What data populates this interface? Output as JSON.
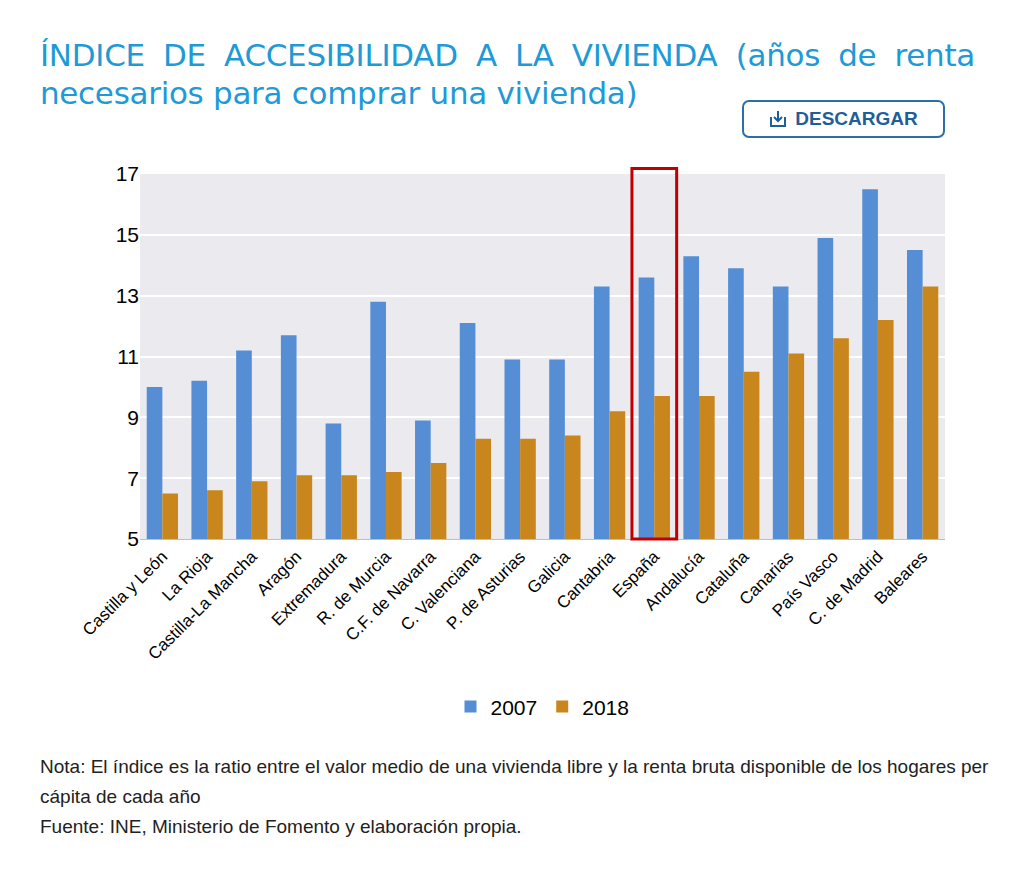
{
  "chart_data": {
    "type": "bar",
    "title": "ÍNDICE DE ACCESIBILIDAD A LA VIVIENDA (años de renta necesarios para comprar una vivienda)",
    "button": "DESCARGAR",
    "categories": [
      "Castilla y León",
      "La Rioja",
      "Castilla-La Mancha",
      "Aragón",
      "Extremadura",
      "R. de Murcia",
      "C.F. de Navarra",
      "C. Valenciana",
      "P. de Asturias",
      "Galicia",
      "Cantabria",
      "España",
      "Andalucía",
      "Cataluña",
      "Canarias",
      "País Vasco",
      "C. de Madrid",
      "Baleares"
    ],
    "series": [
      {
        "name": "2007",
        "color": "#558ED5",
        "values": [
          10.0,
          10.2,
          11.2,
          11.7,
          8.8,
          12.8,
          8.9,
          12.1,
          10.9,
          10.9,
          13.3,
          13.6,
          14.3,
          13.9,
          13.3,
          14.9,
          16.5,
          14.5
        ]
      },
      {
        "name": "2018",
        "color": "#C8861C",
        "values": [
          6.5,
          6.6,
          6.9,
          7.1,
          7.1,
          7.2,
          7.5,
          8.3,
          8.3,
          8.4,
          9.2,
          9.7,
          9.7,
          10.5,
          11.1,
          11.6,
          12.2,
          13.3
        ]
      }
    ],
    "highlight": "España",
    "ylim": [
      5,
      17
    ],
    "yticks": [
      5,
      7,
      9,
      11,
      13,
      15,
      17
    ],
    "grid": true,
    "legend": "bottom",
    "annotations": [
      "Nota: El índice es la ratio entre el valor medio de una vivienda libre y la renta bruta disponible de los hogares per cápita de cada año",
      "Fuente: INE, Ministerio de Fomento y elaboración propia."
    ]
  }
}
